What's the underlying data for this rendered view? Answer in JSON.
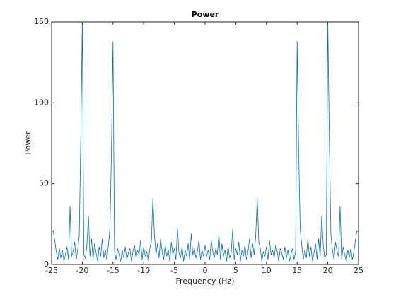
{
  "chart_data": {
    "type": "line",
    "title": "Power",
    "xlabel": "Frequency (Hz)",
    "ylabel": "Power",
    "xlim": [
      -25,
      25
    ],
    "ylim": [
      0,
      150
    ],
    "xticks": [
      -25,
      -20,
      -15,
      -10,
      -5,
      0,
      5,
      10,
      15,
      20,
      25
    ],
    "yticks": [
      0,
      50,
      100,
      150
    ],
    "grid": false,
    "x": [
      -25,
      -24.75,
      -24.5,
      -24.25,
      -24,
      -23.75,
      -23.5,
      -23.25,
      -23,
      -22.75,
      -22.5,
      -22.25,
      -22,
      -21.75,
      -21.5,
      -21.25,
      -21,
      -20.75,
      -20.5,
      -20.25,
      -20,
      -19.75,
      -19.5,
      -19.25,
      -19,
      -18.75,
      -18.5,
      -18.25,
      -18,
      -17.75,
      -17.5,
      -17.25,
      -17,
      -16.75,
      -16.5,
      -16.25,
      -16,
      -15.75,
      -15.5,
      -15.25,
      -15,
      -14.75,
      -14.5,
      -14.25,
      -14,
      -13.75,
      -13.5,
      -13.25,
      -13,
      -12.75,
      -12.5,
      -12.25,
      -12,
      -11.75,
      -11.5,
      -11.25,
      -11,
      -10.75,
      -10.5,
      -10.25,
      -10,
      -9.75,
      -9.5,
      -9.25,
      -9,
      -8.75,
      -8.5,
      -8.25,
      -8,
      -7.75,
      -7.5,
      -7.25,
      -7,
      -6.75,
      -6.5,
      -6.25,
      -6,
      -5.75,
      -5.5,
      -5.25,
      -5,
      -4.75,
      -4.5,
      -4.25,
      -4,
      -3.75,
      -3.5,
      -3.25,
      -3,
      -2.75,
      -2.5,
      -2.25,
      -2,
      -1.75,
      -1.5,
      -1.25,
      -1,
      -0.75,
      -0.5,
      -0.25,
      0,
      0.25,
      0.5,
      0.75,
      1,
      1.25,
      1.5,
      1.75,
      2,
      2.25,
      2.5,
      2.75,
      3,
      3.25,
      3.5,
      3.75,
      4,
      4.25,
      4.5,
      4.75,
      5,
      5.25,
      5.5,
      5.75,
      6,
      6.25,
      6.5,
      6.75,
      7,
      7.25,
      7.5,
      7.75,
      8,
      8.25,
      8.5,
      8.75,
      9,
      9.25,
      9.5,
      9.75,
      10,
      10.25,
      10.5,
      10.75,
      11,
      11.25,
      11.5,
      11.75,
      12,
      12.25,
      12.5,
      12.75,
      13,
      13.25,
      13.5,
      13.75,
      14,
      14.25,
      14.5,
      14.75,
      15,
      15.25,
      15.5,
      15.75,
      16,
      16.25,
      16.5,
      16.75,
      17,
      17.25,
      17.5,
      17.75,
      18,
      18.25,
      18.5,
      18.75,
      19,
      19.25,
      19.5,
      19.75,
      20,
      20.25,
      20.5,
      20.75,
      21,
      21.25,
      21.5,
      21.75,
      22,
      22.25,
      22.5,
      22.75,
      23,
      23.25,
      23.5,
      23.75,
      24,
      24.25,
      24.5,
      24.75,
      25
    ],
    "series": [
      {
        "color": "#0072bd",
        "values": [
          20,
          21,
          15,
          8,
          3,
          10,
          4,
          9,
          2,
          6,
          11,
          3,
          36,
          5,
          8,
          14,
          3,
          9,
          18,
          77,
          150,
          6,
          4,
          12,
          30,
          5,
          16,
          3,
          13,
          7,
          2,
          11,
          5,
          16,
          4,
          9,
          3,
          12,
          22,
          70,
          138,
          8,
          3,
          10,
          6,
          2,
          9,
          4,
          11,
          3,
          7,
          10,
          2,
          8,
          12,
          4,
          9,
          6,
          15,
          3,
          11,
          5,
          8,
          2,
          10,
          14,
          41,
          18,
          6,
          13,
          4,
          16,
          8,
          3,
          12,
          5,
          9,
          2,
          14,
          6,
          10,
          3,
          22,
          7,
          4,
          11,
          2,
          9,
          5,
          13,
          3,
          19,
          6,
          10,
          4,
          8,
          15,
          3,
          9,
          5,
          12,
          5,
          9,
          3,
          15,
          8,
          4,
          10,
          6,
          19,
          3,
          13,
          5,
          9,
          2,
          11,
          4,
          7,
          22,
          3,
          10,
          6,
          14,
          2,
          9,
          5,
          12,
          3,
          8,
          16,
          4,
          13,
          6,
          18,
          41,
          14,
          10,
          2,
          8,
          5,
          11,
          3,
          15,
          6,
          9,
          4,
          12,
          8,
          2,
          10,
          7,
          3,
          11,
          4,
          9,
          2,
          6,
          10,
          3,
          8,
          138,
          70,
          22,
          12,
          3,
          9,
          4,
          16,
          5,
          11,
          2,
          7,
          13,
          3,
          16,
          5,
          30,
          12,
          4,
          6,
          150,
          77,
          18,
          9,
          3,
          14,
          8,
          5,
          36,
          3,
          11,
          6,
          2,
          9,
          4,
          10,
          3,
          8,
          15,
          21,
          20
        ]
      }
    ]
  }
}
